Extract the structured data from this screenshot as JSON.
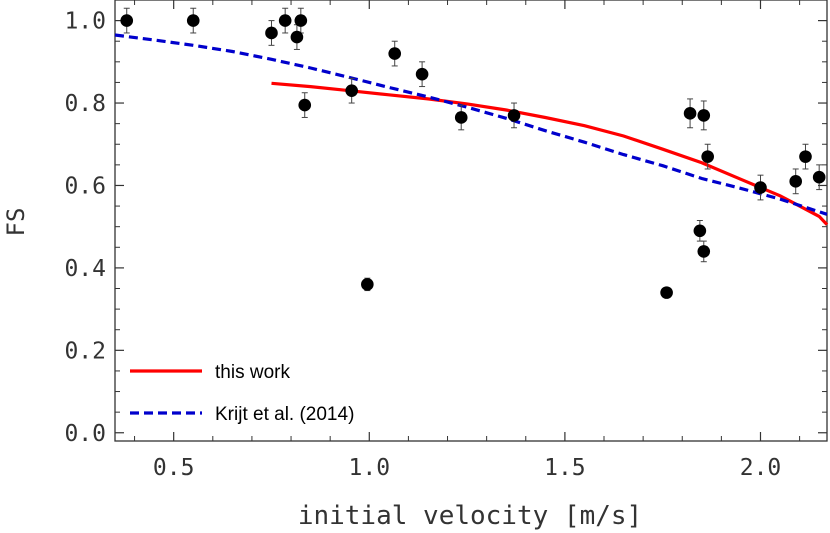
{
  "chart_data": {
    "type": "scatter",
    "xlabel": "initial velocity [m/s]",
    "ylabel": "FS",
    "xlim": [
      0.35,
      2.17
    ],
    "ylim": [
      -0.02,
      1.05
    ],
    "xticks": [
      0.5,
      1.0,
      1.5,
      2.0
    ],
    "xtick_labels": [
      "0.5",
      "1.0",
      "1.5",
      "2.0"
    ],
    "yticks": [
      0.0,
      0.2,
      0.4,
      0.6,
      0.8,
      1.0
    ],
    "ytick_labels": [
      "0.0",
      "0.2",
      "0.4",
      "0.6",
      "0.8",
      "1.0"
    ],
    "grid": false,
    "legend_position": "bottom-left",
    "points": [
      {
        "x": 0.38,
        "y": 1.0,
        "err": 0.03
      },
      {
        "x": 0.55,
        "y": 1.0,
        "err": 0.03
      },
      {
        "x": 0.75,
        "y": 0.97,
        "err": 0.03
      },
      {
        "x": 0.785,
        "y": 1.0,
        "err": 0.03
      },
      {
        "x": 0.815,
        "y": 0.96,
        "err": 0.03
      },
      {
        "x": 0.825,
        "y": 1.0,
        "err": 0.03
      },
      {
        "x": 0.835,
        "y": 0.795,
        "err": 0.03
      },
      {
        "x": 0.955,
        "y": 0.83,
        "err": 0.03
      },
      {
        "x": 0.995,
        "y": 0.36,
        "err": 0.015
      },
      {
        "x": 1.065,
        "y": 0.92,
        "err": 0.03
      },
      {
        "x": 1.135,
        "y": 0.87,
        "err": 0.03
      },
      {
        "x": 1.235,
        "y": 0.765,
        "err": 0.03
      },
      {
        "x": 1.37,
        "y": 0.77,
        "err": 0.03
      },
      {
        "x": 1.76,
        "y": 0.34,
        "err": 0.01
      },
      {
        "x": 1.82,
        "y": 0.775,
        "err": 0.035
      },
      {
        "x": 1.845,
        "y": 0.49,
        "err": 0.025
      },
      {
        "x": 1.855,
        "y": 0.44,
        "err": 0.025
      },
      {
        "x": 1.855,
        "y": 0.77,
        "err": 0.035
      },
      {
        "x": 1.865,
        "y": 0.67,
        "err": 0.03
      },
      {
        "x": 2.0,
        "y": 0.595,
        "err": 0.03
      },
      {
        "x": 2.09,
        "y": 0.61,
        "err": 0.03
      },
      {
        "x": 2.115,
        "y": 0.67,
        "err": 0.03
      },
      {
        "x": 2.15,
        "y": 0.62,
        "err": 0.03
      }
    ],
    "series": [
      {
        "name": "this work",
        "style": "solid",
        "color": "#ff0000",
        "x": [
          0.75,
          0.85,
          0.95,
          1.05,
          1.15,
          1.25,
          1.35,
          1.45,
          1.55,
          1.65,
          1.75,
          1.85,
          1.95,
          2.05,
          2.1,
          2.15,
          2.17
        ],
        "y": [
          0.848,
          0.84,
          0.83,
          0.82,
          0.81,
          0.798,
          0.783,
          0.765,
          0.745,
          0.72,
          0.688,
          0.655,
          0.615,
          0.575,
          0.55,
          0.525,
          0.505
        ]
      },
      {
        "name": "Krijt et al. (2014)",
        "style": "dashed",
        "color": "#0000cc",
        "x": [
          0.35,
          0.45,
          0.55,
          0.65,
          0.75,
          0.85,
          0.95,
          1.05,
          1.15,
          1.25,
          1.35,
          1.45,
          1.55,
          1.65,
          1.75,
          1.85,
          1.95,
          2.05,
          2.17
        ],
        "y": [
          0.965,
          0.953,
          0.94,
          0.925,
          0.906,
          0.885,
          0.862,
          0.838,
          0.815,
          0.79,
          0.763,
          0.733,
          0.705,
          0.675,
          0.648,
          0.617,
          0.593,
          0.567,
          0.53
        ]
      }
    ]
  }
}
